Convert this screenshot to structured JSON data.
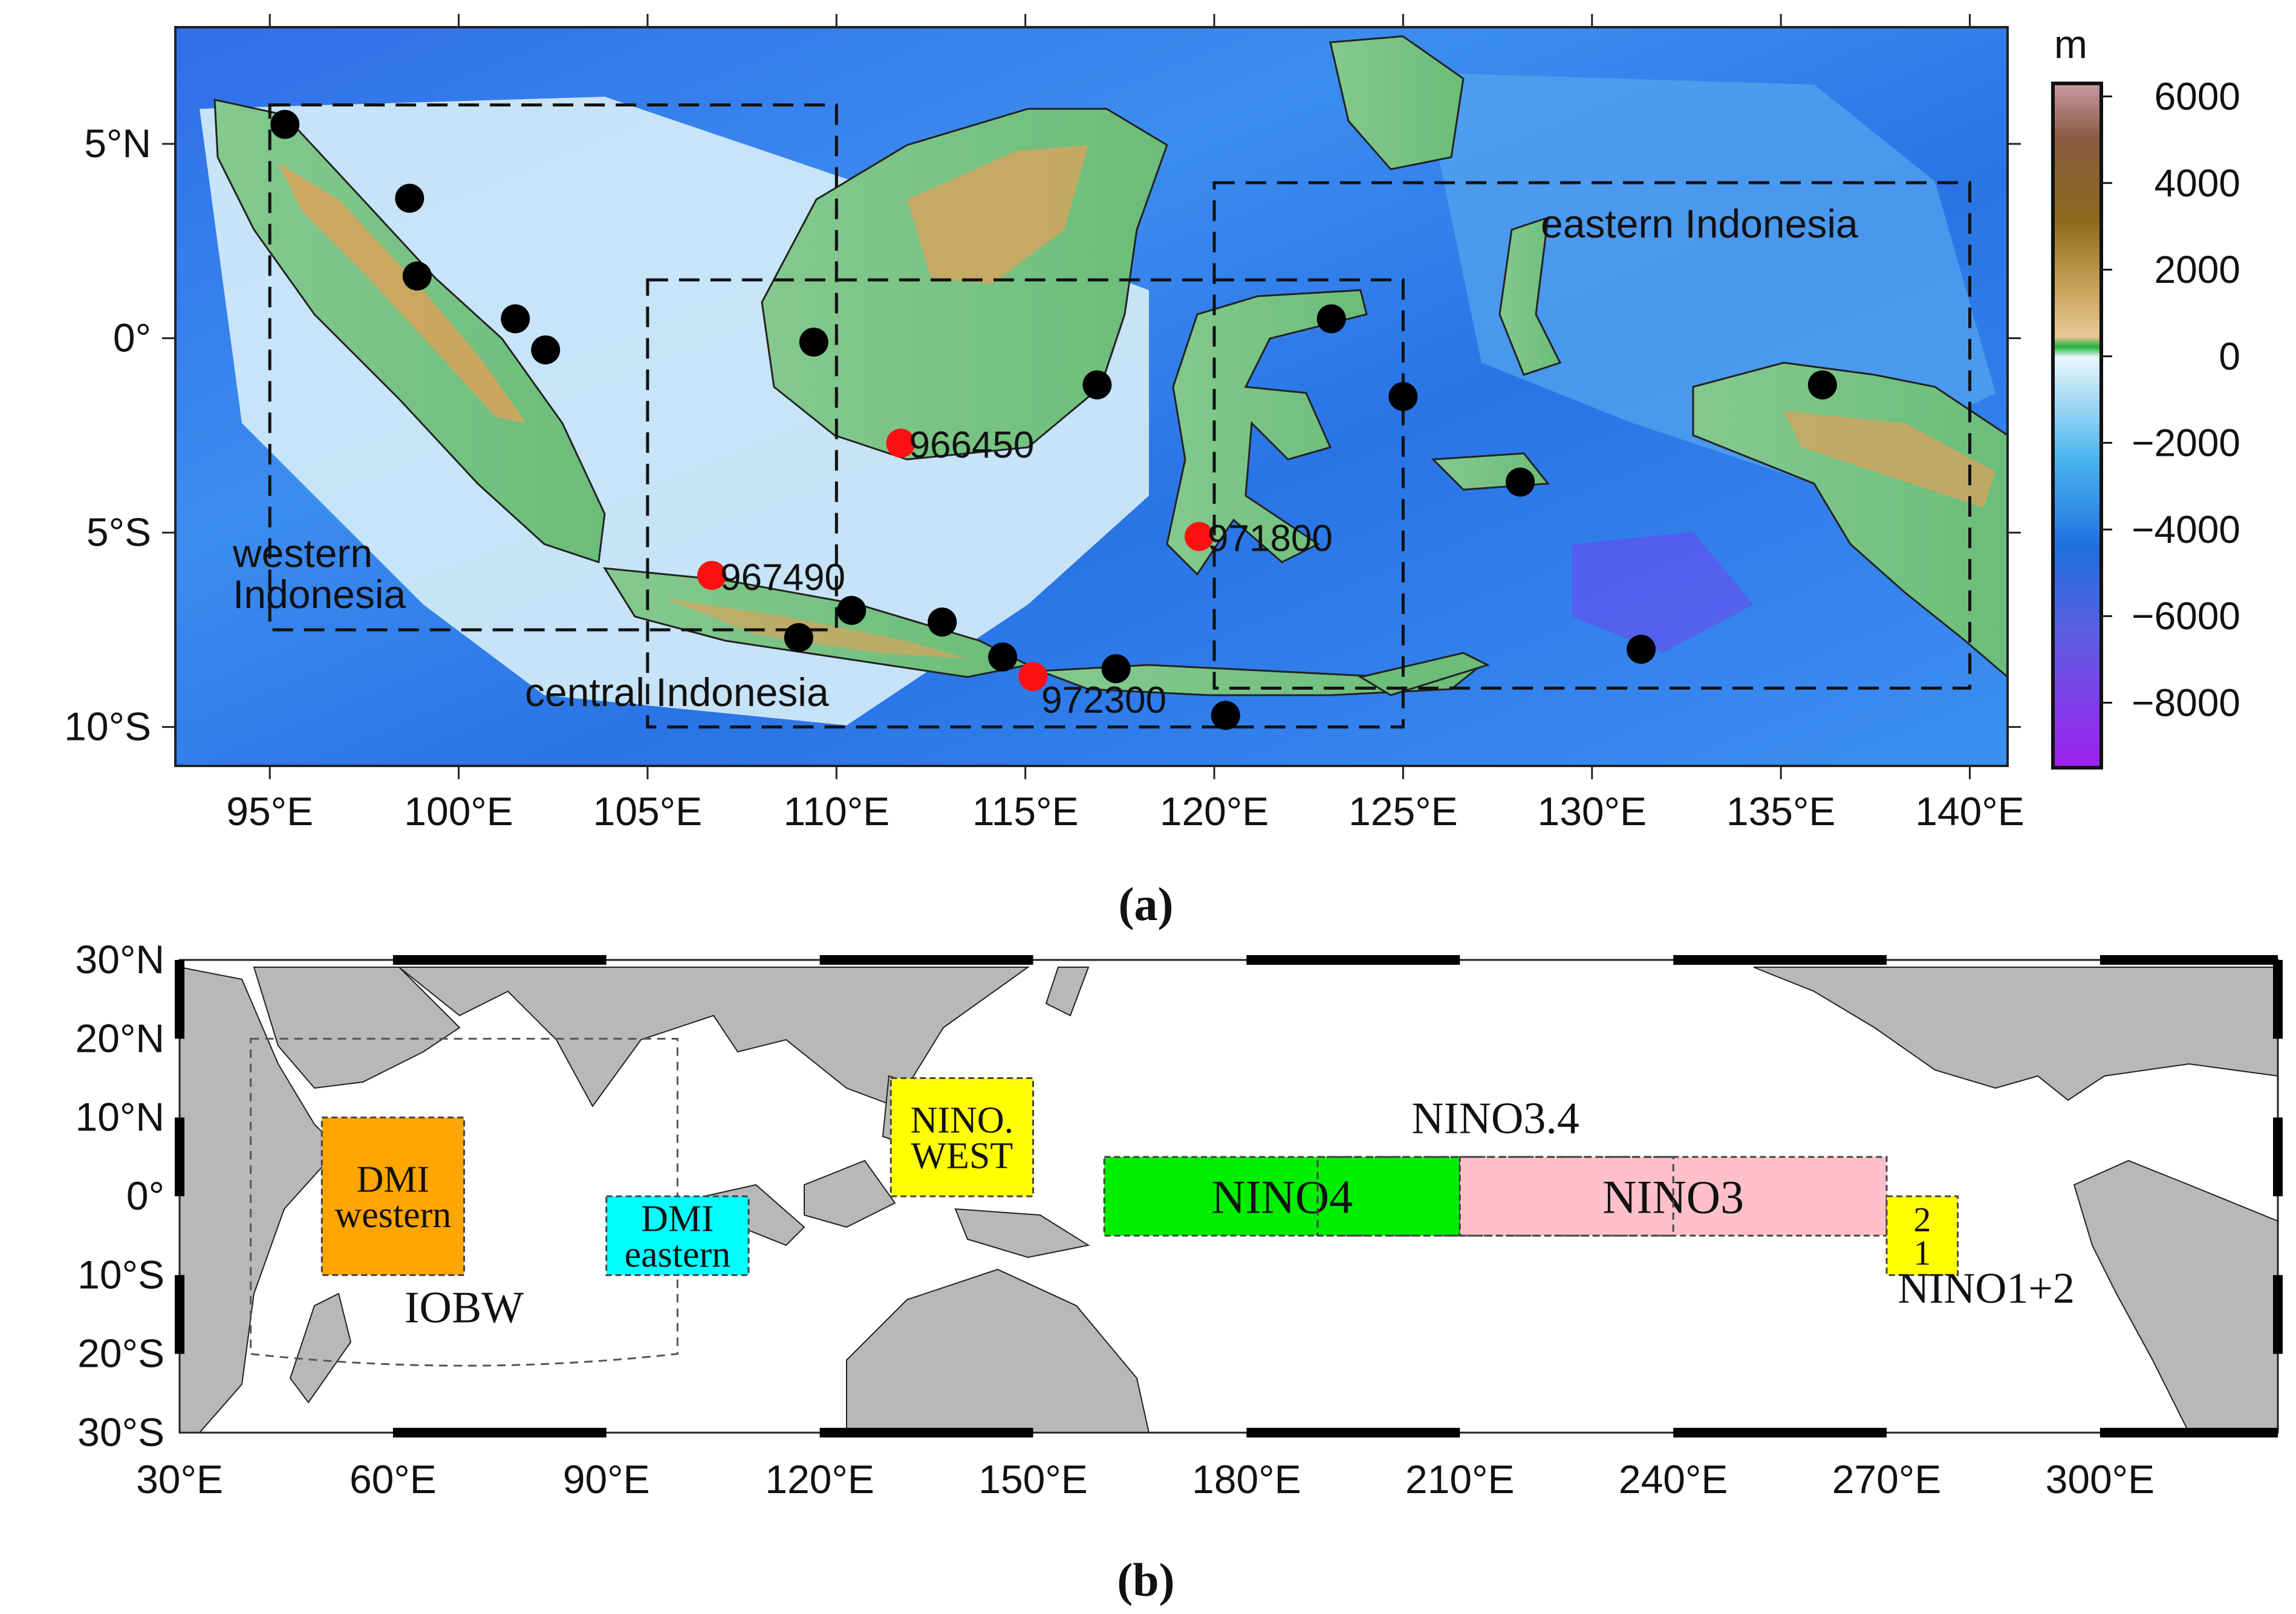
{
  "panel_a": {
    "caption": "(a)",
    "extent": {
      "lon": [
        92.5,
        141.0
      ],
      "lat": [
        -11.0,
        8.0
      ]
    },
    "x_ticks": [
      {
        "value": 95,
        "label": "95°E"
      },
      {
        "value": 100,
        "label": "100°E"
      },
      {
        "value": 105,
        "label": "105°E"
      },
      {
        "value": 110,
        "label": "110°E"
      },
      {
        "value": 115,
        "label": "115°E"
      },
      {
        "value": 120,
        "label": "120°E"
      },
      {
        "value": 125,
        "label": "125°E"
      },
      {
        "value": 130,
        "label": "130°E"
      },
      {
        "value": 135,
        "label": "135°E"
      },
      {
        "value": 140,
        "label": "140°E"
      }
    ],
    "y_ticks": [
      {
        "value": 5,
        "label": "5°N"
      },
      {
        "value": 0,
        "label": "0°"
      },
      {
        "value": -5,
        "label": "5°S"
      },
      {
        "value": -10,
        "label": "10°S"
      }
    ],
    "regions": [
      {
        "name": "western Indonesia",
        "label_lines": [
          "western",
          "Indonesia"
        ],
        "lon": [
          95,
          110
        ],
        "lat": [
          -7.5,
          6
        ]
      },
      {
        "name": "central Indonesia",
        "label_lines": [
          "central Indonesia"
        ],
        "lon": [
          105,
          125
        ],
        "lat": [
          -10,
          1.5
        ]
      },
      {
        "name": "eastern Indonesia",
        "label_lines": [
          "eastern Indonesia"
        ],
        "lon": [
          120,
          140
        ],
        "lat": [
          -9,
          4
        ]
      }
    ],
    "stations_black": [
      {
        "lon": 95.4,
        "lat": 5.5
      },
      {
        "lon": 98.7,
        "lat": 3.6
      },
      {
        "lon": 98.9,
        "lat": 1.6
      },
      {
        "lon": 101.5,
        "lat": 0.5
      },
      {
        "lon": 102.3,
        "lat": -0.3
      },
      {
        "lon": 109.4,
        "lat": -0.1
      },
      {
        "lon": 116.9,
        "lat": -1.2
      },
      {
        "lon": 123.1,
        "lat": 0.5
      },
      {
        "lon": 125.0,
        "lat": -1.5
      },
      {
        "lon": 128.1,
        "lat": -3.7
      },
      {
        "lon": 136.1,
        "lat": -1.2
      },
      {
        "lon": 110.4,
        "lat": -7.0
      },
      {
        "lon": 112.8,
        "lat": -7.3
      },
      {
        "lon": 109.0,
        "lat": -7.7
      },
      {
        "lon": 114.4,
        "lat": -8.2
      },
      {
        "lon": 117.4,
        "lat": -8.5
      },
      {
        "lon": 120.3,
        "lat": -9.7
      },
      {
        "lon": 131.3,
        "lat": -8.0
      }
    ],
    "stations_red": [
      {
        "id": "966450",
        "lon": 111.7,
        "lat": -2.7
      },
      {
        "id": "967490",
        "lon": 106.7,
        "lat": -6.1
      },
      {
        "id": "971800",
        "lon": 119.6,
        "lat": -5.1
      },
      {
        "id": "972300",
        "lon": 115.2,
        "lat": -8.7
      }
    ],
    "colorbar": {
      "unit": "m",
      "range": [
        -9500,
        6300
      ],
      "ticks": [
        6000,
        4000,
        2000,
        0,
        -2000,
        -4000,
        -6000,
        -8000
      ],
      "tick_labels": [
        "6000",
        "4000",
        "2000",
        "0",
        "−2000",
        "−4000",
        "−6000",
        "−8000"
      ]
    }
  },
  "panel_b": {
    "caption": "(b)",
    "extent": {
      "lon": [
        30,
        325
      ],
      "lat": [
        -30,
        30
      ]
    },
    "x_ticks": [
      {
        "value": 30,
        "label": "30°E"
      },
      {
        "value": 60,
        "label": "60°E"
      },
      {
        "value": 90,
        "label": "90°E"
      },
      {
        "value": 120,
        "label": "120°E"
      },
      {
        "value": 150,
        "label": "150°E"
      },
      {
        "value": 180,
        "label": "180°E"
      },
      {
        "value": 210,
        "label": "210°E"
      },
      {
        "value": 240,
        "label": "240°E"
      },
      {
        "value": 270,
        "label": "270°E"
      },
      {
        "value": 300,
        "label": "300°E"
      }
    ],
    "y_ticks": [
      {
        "value": 30,
        "label": "30°N"
      },
      {
        "value": 20,
        "label": "20°N"
      },
      {
        "value": 10,
        "label": "10°N"
      },
      {
        "value": 0,
        "label": "0°"
      },
      {
        "value": -10,
        "label": "10°S"
      },
      {
        "value": -20,
        "label": "20°S"
      },
      {
        "value": -30,
        "label": "30°S"
      }
    ],
    "regions": [
      {
        "name": "DMI western",
        "label_lines": [
          "DMI",
          "western"
        ],
        "lon": [
          50,
          70
        ],
        "lat": [
          -10,
          10
        ],
        "color": "#ffa500"
      },
      {
        "name": "DMI eastern",
        "label_lines": [
          "DMI",
          "eastern"
        ],
        "lon": [
          90,
          110
        ],
        "lat": [
          -10,
          0
        ],
        "color": "#00ffff"
      },
      {
        "name": "NINO WEST",
        "label_lines": [
          "NINO.",
          "WEST"
        ],
        "lon": [
          130,
          150
        ],
        "lat": [
          0,
          15
        ],
        "color": "#ffff00"
      },
      {
        "name": "NINO4",
        "label_lines": [
          "NINO4"
        ],
        "lon": [
          160,
          210
        ],
        "lat": [
          -5,
          5
        ],
        "color": "#00ee00"
      },
      {
        "name": "NINO3",
        "label_lines": [
          "NINO3"
        ],
        "lon": [
          210,
          270
        ],
        "lat": [
          -5,
          5
        ],
        "color": "#ffc0cb"
      },
      {
        "name": "NINO1+2",
        "label_lines": [
          "2",
          "1"
        ],
        "lon": [
          270,
          280
        ],
        "lat": [
          -10,
          0
        ],
        "color": "#ffff00"
      }
    ],
    "outline_regions": [
      {
        "name": "IOBW",
        "lon": [
          40,
          100
        ],
        "lat": [
          -20,
          20
        ]
      },
      {
        "name": "NINO3.4",
        "lon": [
          190,
          240
        ],
        "lat": [
          -5,
          5
        ]
      }
    ],
    "labels": {
      "iobw": "IOBW",
      "nino34": "NINO3.4",
      "nino12": "NINO1+2"
    },
    "colors": {
      "land": "#b8b8b8"
    }
  }
}
